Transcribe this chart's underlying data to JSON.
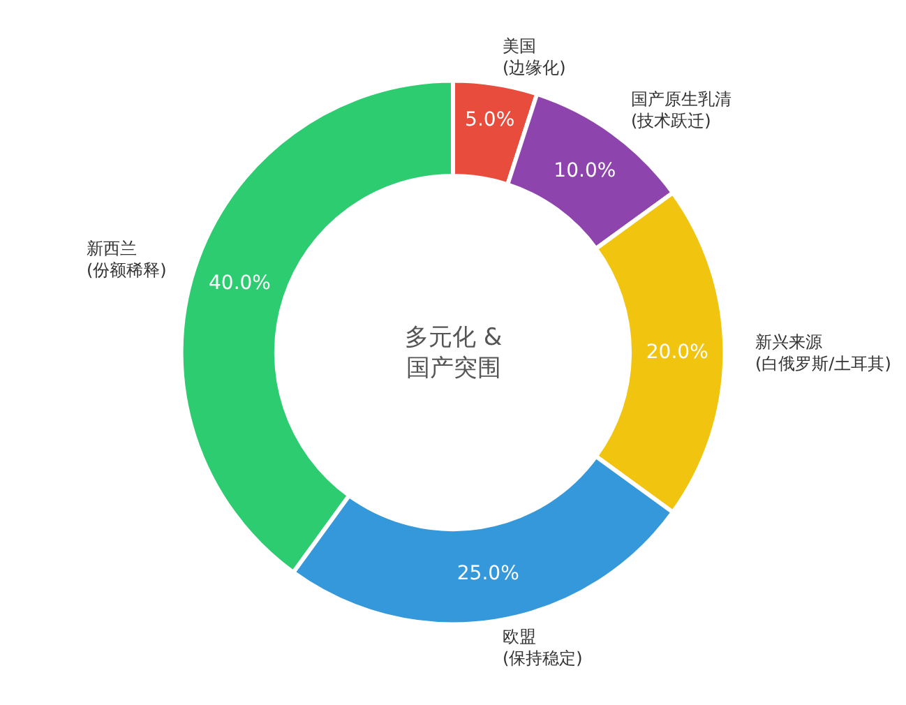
{
  "chart_data": {
    "type": "donut",
    "categories": [
      "美国\n(边缘化)",
      "国产原生乳清\n(技术跃迁)",
      "新兴来源\n(白俄罗斯/土耳其)",
      "欧盟\n(保持稳定)",
      "新西兰\n(份额稀释)"
    ],
    "values": [
      5,
      10,
      20,
      25,
      40
    ],
    "colors": [
      "#e74c3c",
      "#8e44ad",
      "#f1c40f",
      "#3498db",
      "#2ecc71"
    ],
    "value_labels": [
      "5.0%",
      "10.0%",
      "20.0%",
      "25.0%",
      "40.0%"
    ],
    "annotations": [
      "多元化 &\n国产突围"
    ],
    "legend": false
  }
}
